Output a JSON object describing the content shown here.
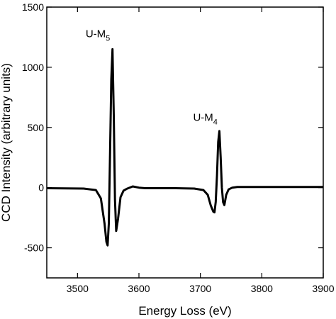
{
  "chart_data": {
    "type": "line",
    "xlabel": "Energy Loss (eV)",
    "ylabel": "CCD Intensity (arbitrary units)",
    "xlim": [
      3450,
      3900
    ],
    "ylim": [
      -750,
      1500
    ],
    "x_ticks": [
      3500,
      3600,
      3700,
      3800,
      3900
    ],
    "y_ticks": [
      -500,
      0,
      500,
      1000,
      1500
    ],
    "grid": false,
    "legend": "none",
    "line_color": "#000000",
    "annotations": [
      {
        "base": "U-M",
        "sub": "5",
        "x": 3553,
        "y": 1250
      },
      {
        "base": "U-M",
        "sub": "4",
        "x": 3728,
        "y": 555
      }
    ],
    "series": [
      {
        "x": [
          3450,
          3480,
          3510,
          3530,
          3538,
          3544,
          3547,
          3549,
          3551,
          3553,
          3555,
          3557,
          3559,
          3561,
          3563,
          3566,
          3570,
          3575,
          3580,
          3590,
          3600,
          3610,
          3630,
          3660,
          3690,
          3705,
          3712,
          3717,
          3721,
          3723,
          3725,
          3727,
          3729,
          3731,
          3733,
          3735,
          3737,
          3739,
          3742,
          3746,
          3752,
          3760,
          3780,
          3820,
          3860,
          3900
        ],
        "y": [
          -5,
          -6,
          -8,
          -20,
          -90,
          -300,
          -450,
          -480,
          -300,
          300,
          900,
          1150,
          600,
          -100,
          -360,
          -260,
          -80,
          -25,
          -10,
          10,
          0,
          -5,
          -5,
          -5,
          -8,
          -20,
          -60,
          -150,
          -200,
          -205,
          -120,
          100,
          380,
          470,
          250,
          0,
          -120,
          -145,
          -60,
          -15,
          0,
          5,
          5,
          5,
          5,
          5
        ]
      }
    ]
  }
}
